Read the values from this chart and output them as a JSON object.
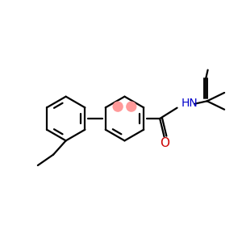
{
  "bg_color": "#ffffff",
  "bond_color": "#000000",
  "nh_color": "#0000cc",
  "o_color": "#cc0000",
  "circle_color": "#ff9999",
  "figsize": [
    3.0,
    3.0
  ],
  "dpi": 100,
  "xlim": [
    0,
    10
  ],
  "ylim": [
    0,
    10
  ]
}
